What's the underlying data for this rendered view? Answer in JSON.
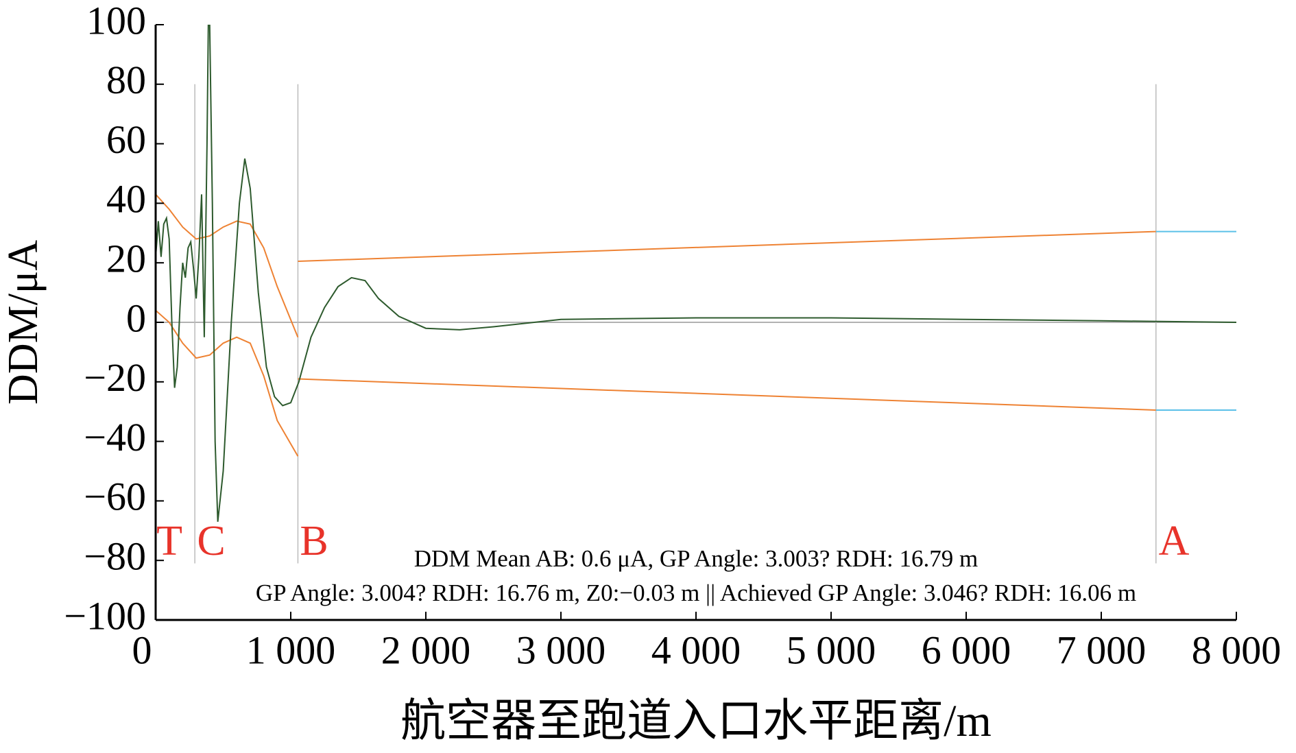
{
  "chart_data": {
    "type": "line",
    "xlabel": "航空器至跑道入口水平距离/m",
    "ylabel": "DDM/μA",
    "xlim": [
      0,
      8000
    ],
    "ylim": [
      -100,
      100
    ],
    "xticks": [
      0,
      {
        "value": 1000,
        "label": "1 000"
      },
      {
        "value": 2000,
        "label": "2 000"
      },
      {
        "value": 3000,
        "label": "3 000"
      },
      {
        "value": 4000,
        "label": "4 000"
      },
      {
        "value": 5000,
        "label": "5 000"
      },
      {
        "value": 6000,
        "label": "6 000"
      },
      {
        "value": 7000,
        "label": "7 000"
      },
      {
        "value": 8000,
        "label": "8 000"
      }
    ],
    "yticks": [
      {
        "value": -100,
        "label": "−100"
      },
      {
        "value": -80,
        "label": "−80"
      },
      {
        "value": -60,
        "label": "−60"
      },
      {
        "value": -40,
        "label": "−40"
      },
      {
        "value": -20,
        "label": "−20"
      },
      0,
      20,
      40,
      60,
      80,
      100
    ],
    "zero_line_color": "#999999",
    "vlines": [
      290,
      1053,
      7405
    ],
    "vline_color": "#bbbbbb",
    "zone_labels": [
      "T",
      "C",
      "B",
      "A"
    ],
    "zone_label_color": "#e8332a",
    "annotations": [
      "DDM Mean AB: 0.6 μA, GP Angle: 3.003? RDH: 16.79 m",
      "GP Angle: 3.004? RDH: 16.76 m, Z0:−0.03 m  ||  Achieved GP Angle: 3.046? RDH: 16.06 m"
    ],
    "series": [
      {
        "color": "#ee8233",
        "x": [
          0,
          100,
          200,
          300,
          400,
          500,
          600,
          700,
          800,
          900,
          1053
        ],
        "values": [
          43,
          38,
          32,
          28,
          29,
          32,
          34,
          33,
          25,
          12,
          -5
        ]
      },
      {
        "color": "#ee8233",
        "x": [
          0,
          100,
          200,
          300,
          400,
          500,
          600,
          700,
          800,
          900,
          1053
        ],
        "values": [
          4,
          0,
          -7,
          -12,
          -11,
          -7,
          -5,
          -7,
          -18,
          -33,
          -45
        ]
      },
      {
        "color": "#ee8233",
        "x": [
          1053,
          7405
        ],
        "values": [
          20.5,
          30.5
        ]
      },
      {
        "color": "#ee8233",
        "x": [
          1053,
          7405
        ],
        "values": [
          -19,
          -29.5
        ]
      },
      {
        "color": "#5bc0e8",
        "x": [
          7405,
          8000
        ],
        "values": [
          30.5,
          30.5
        ]
      },
      {
        "color": "#5bc0e8",
        "x": [
          7405,
          8000
        ],
        "values": [
          -29.5,
          -29.5
        ]
      },
      {
        "color": "#2d5a2d",
        "x": [
          0,
          20,
          40,
          60,
          80,
          100,
          120,
          140,
          160,
          180,
          200,
          220,
          240,
          260,
          280,
          300,
          320,
          340,
          360,
          380,
          390,
          400,
          420,
          440,
          460,
          500,
          560,
          620,
          660,
          700,
          760,
          820,
          880,
          940,
          1000,
          1060,
          1150,
          1250,
          1350,
          1450,
          1550,
          1650,
          1800,
          2000,
          2250,
          2500,
          3000,
          4000,
          5000,
          6000,
          7000,
          8000
        ],
        "values": [
          22,
          34,
          22,
          33,
          35,
          28,
          0,
          -22,
          -15,
          5,
          20,
          15,
          25,
          27,
          18,
          8,
          22,
          43,
          -5,
          60,
          100,
          100,
          40,
          -40,
          -67,
          -50,
          0,
          40,
          55,
          45,
          10,
          -15,
          -25,
          -28,
          -27,
          -20,
          -5,
          5,
          12,
          15,
          14,
          8,
          2,
          -2,
          -2.5,
          -1.5,
          1,
          1.5,
          1.5,
          1,
          0.5,
          0
        ]
      }
    ]
  }
}
